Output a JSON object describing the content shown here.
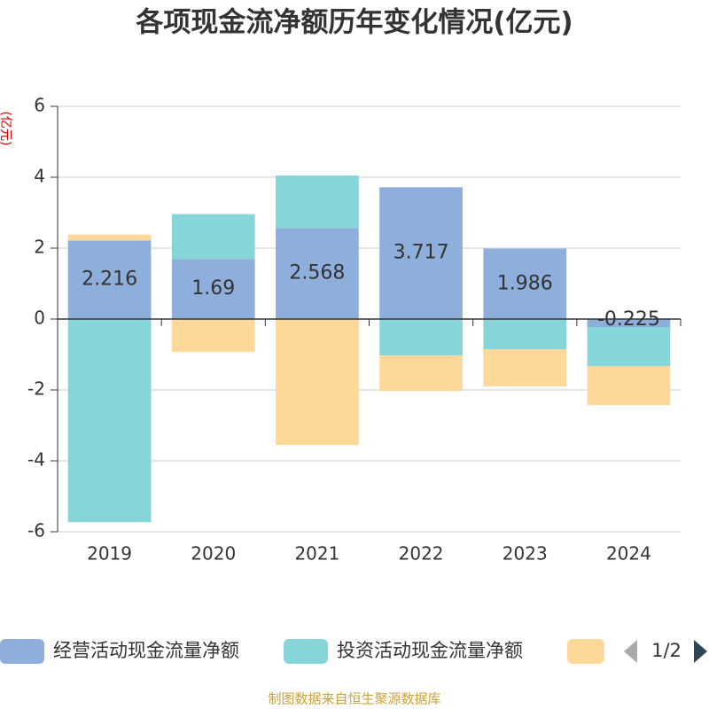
{
  "chart_data": {
    "type": "bar",
    "stacked": true,
    "title": "各项现金流净额历年变化情况(亿元)",
    "y_label": "(亿元)",
    "categories": [
      "2019",
      "2020",
      "2021",
      "2022",
      "2023",
      "2024"
    ],
    "series": [
      {
        "name": "经营活动现金流量净额",
        "color": "#8eaedb",
        "values": [
          2.216,
          1.69,
          2.568,
          3.717,
          1.986,
          -0.225
        ],
        "show_labels": true
      },
      {
        "name": "投资活动现金流量净额",
        "color": "#86d5d8",
        "values": [
          -5.73,
          1.27,
          1.48,
          -1.03,
          -0.85,
          -1.1
        ]
      },
      {
        "color": "#fed898",
        "values": [
          0.17,
          -0.93,
          -3.55,
          -1.0,
          -1.05,
          -1.1
        ]
      }
    ],
    "ylim": [
      -6,
      6
    ],
    "yticks": [
      -6,
      -4,
      -2,
      0,
      2,
      4,
      6
    ],
    "grid": true,
    "legend_page": "1/2",
    "source": "制图数据来自恒生聚源数据库"
  }
}
